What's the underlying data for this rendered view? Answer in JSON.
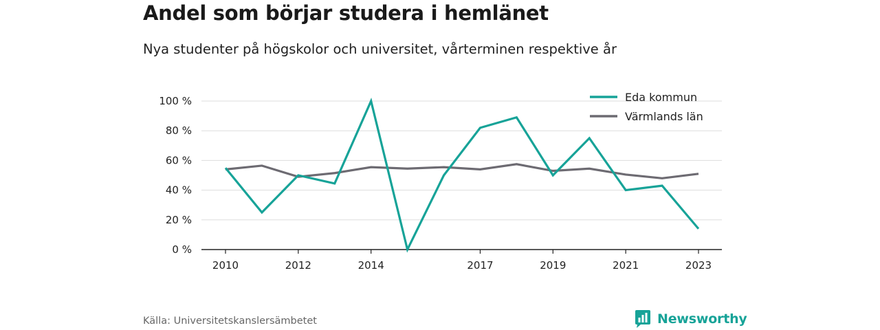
{
  "title": "Andel som börjar studera i hemlänet",
  "subtitle": "Nya studenter på högskolor och universitet, vårterminen respektive år",
  "source": "Källa: Universitetskanslersämbetet",
  "brand": "Newsworthy",
  "colors": {
    "eda": "#17a398",
    "varmland": "#6d6b72",
    "grid": "#dddddd",
    "axis": "#222222",
    "brand": "#17a398"
  },
  "chart_data": {
    "type": "line",
    "x": [
      2010,
      2011,
      2012,
      2013,
      2014,
      2015,
      2016,
      2017,
      2018,
      2019,
      2020,
      2021,
      2022,
      2023
    ],
    "x_tick_labels": [
      "2010",
      "2012",
      "2014",
      "2017",
      "2019",
      "2021",
      "2023"
    ],
    "y_ticks": [
      0,
      20,
      40,
      60,
      80,
      100
    ],
    "y_tick_labels": [
      "0 %",
      "20 %",
      "40 %",
      "60 %",
      "80 %",
      "100 %"
    ],
    "ylim": [
      0,
      100
    ],
    "grid": true,
    "legend_position": "top-right",
    "series": [
      {
        "name": "Eda kommun",
        "color": "#17a398",
        "values": [
          55,
          25,
          50,
          44.5,
          100,
          0,
          50,
          82,
          89,
          50,
          75,
          40,
          43,
          14
        ]
      },
      {
        "name": "Värmlands län",
        "color": "#6d6b72",
        "values": [
          54,
          56.5,
          49,
          51.5,
          55.5,
          54.5,
          55.5,
          54,
          57.5,
          53,
          54.5,
          50.5,
          48,
          51
        ]
      }
    ]
  }
}
